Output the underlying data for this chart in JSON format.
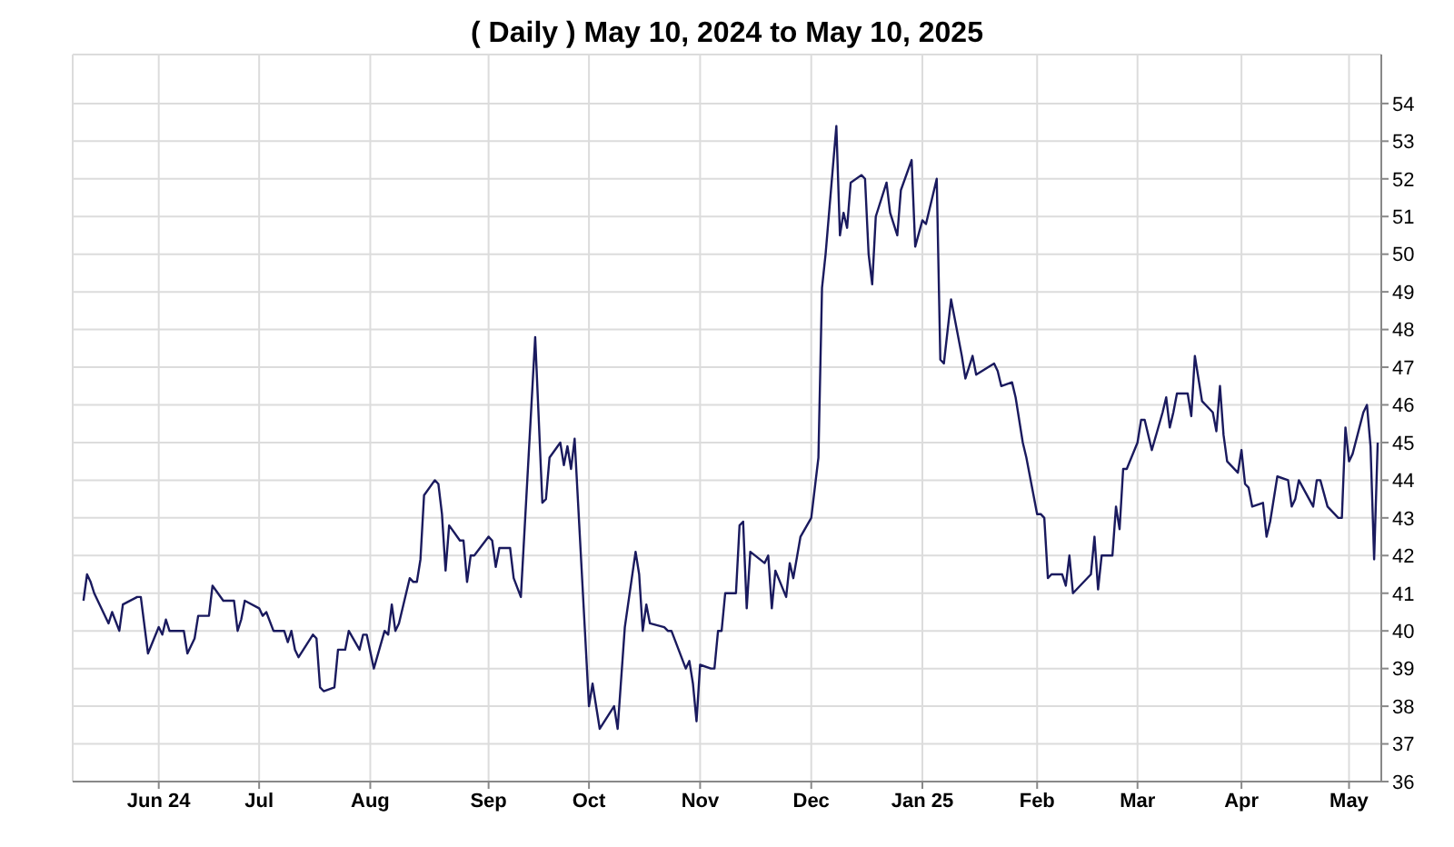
{
  "chart_data": {
    "type": "line",
    "title": "( Daily ) May 10, 2024 to May 10, 2025",
    "x": [
      "2024-05-13",
      "2024-05-14",
      "2024-05-15",
      "2024-05-16",
      "2024-05-20",
      "2024-05-21",
      "2024-05-23",
      "2024-05-24",
      "2024-05-28",
      "2024-05-29",
      "2024-05-31",
      "2024-06-03",
      "2024-06-04",
      "2024-06-05",
      "2024-06-06",
      "2024-06-10",
      "2024-06-11",
      "2024-06-13",
      "2024-06-14",
      "2024-06-17",
      "2024-06-18",
      "2024-06-21",
      "2024-06-24",
      "2024-06-25",
      "2024-06-26",
      "2024-06-27",
      "2024-07-01",
      "2024-07-02",
      "2024-07-03",
      "2024-07-05",
      "2024-07-08",
      "2024-07-09",
      "2024-07-10",
      "2024-07-11",
      "2024-07-12",
      "2024-07-16",
      "2024-07-17",
      "2024-07-18",
      "2024-07-19",
      "2024-07-22",
      "2024-07-23",
      "2024-07-25",
      "2024-07-26",
      "2024-07-29",
      "2024-07-30",
      "2024-07-31",
      "2024-08-02",
      "2024-08-05",
      "2024-08-06",
      "2024-08-07",
      "2024-08-08",
      "2024-08-09",
      "2024-08-12",
      "2024-08-13",
      "2024-08-14",
      "2024-08-15",
      "2024-08-16",
      "2024-08-19",
      "2024-08-20",
      "2024-08-21",
      "2024-08-22",
      "2024-08-23",
      "2024-08-26",
      "2024-08-27",
      "2024-08-28",
      "2024-08-29",
      "2024-08-30",
      "2024-09-03",
      "2024-09-04",
      "2024-09-05",
      "2024-09-06",
      "2024-09-09",
      "2024-09-10",
      "2024-09-12",
      "2024-09-16",
      "2024-09-18",
      "2024-09-19",
      "2024-09-20",
      "2024-09-23",
      "2024-09-24",
      "2024-09-25",
      "2024-09-26",
      "2024-09-27",
      "2024-10-01",
      "2024-10-02",
      "2024-10-04",
      "2024-10-08",
      "2024-10-09",
      "2024-10-11",
      "2024-10-14",
      "2024-10-15",
      "2024-10-16",
      "2024-10-17",
      "2024-10-18",
      "2024-10-22",
      "2024-10-23",
      "2024-10-24",
      "2024-10-28",
      "2024-10-29",
      "2024-10-30",
      "2024-10-31",
      "2024-11-01",
      "2024-11-04",
      "2024-11-05",
      "2024-11-06",
      "2024-11-07",
      "2024-11-08",
      "2024-11-11",
      "2024-11-12",
      "2024-11-13",
      "2024-11-14",
      "2024-11-15",
      "2024-11-19",
      "2024-11-20",
      "2024-11-21",
      "2024-11-22",
      "2024-11-25",
      "2024-11-26",
      "2024-11-27",
      "2024-11-29",
      "2024-12-02",
      "2024-12-04",
      "2024-12-05",
      "2024-12-06",
      "2024-12-09",
      "2024-12-10",
      "2024-12-11",
      "2024-12-12",
      "2024-12-13",
      "2024-12-16",
      "2024-12-17",
      "2024-12-18",
      "2024-12-19",
      "2024-12-20",
      "2024-12-23",
      "2024-12-24",
      "2024-12-26",
      "2024-12-27",
      "2024-12-30",
      "2024-12-31",
      "2025-01-02",
      "2025-01-03",
      "2025-01-06",
      "2025-01-07",
      "2025-01-08",
      "2025-01-10",
      "2025-01-13",
      "2025-01-14",
      "2025-01-15",
      "2025-01-16",
      "2025-01-17",
      "2025-01-22",
      "2025-01-23",
      "2025-01-24",
      "2025-01-27",
      "2025-01-28",
      "2025-01-30",
      "2025-01-31",
      "2025-02-03",
      "2025-02-04",
      "2025-02-05",
      "2025-02-06",
      "2025-02-07",
      "2025-02-10",
      "2025-02-11",
      "2025-02-12",
      "2025-02-13",
      "2025-02-18",
      "2025-02-19",
      "2025-02-20",
      "2025-02-21",
      "2025-02-24",
      "2025-02-25",
      "2025-02-26",
      "2025-02-27",
      "2025-02-28",
      "2025-03-03",
      "2025-03-04",
      "2025-03-05",
      "2025-03-07",
      "2025-03-10",
      "2025-03-11",
      "2025-03-12",
      "2025-03-13",
      "2025-03-14",
      "2025-03-17",
      "2025-03-18",
      "2025-03-19",
      "2025-03-21",
      "2025-03-24",
      "2025-03-25",
      "2025-03-26",
      "2025-03-27",
      "2025-03-28",
      "2025-03-31",
      "2025-04-01",
      "2025-04-02",
      "2025-04-03",
      "2025-04-04",
      "2025-04-07",
      "2025-04-08",
      "2025-04-09",
      "2025-04-11",
      "2025-04-14",
      "2025-04-15",
      "2025-04-16",
      "2025-04-17",
      "2025-04-21",
      "2025-04-22",
      "2025-04-23",
      "2025-04-25",
      "2025-04-28",
      "2025-04-29",
      "2025-04-30",
      "2025-05-01",
      "2025-05-02",
      "2025-05-05",
      "2025-05-06",
      "2025-05-07",
      "2025-05-08",
      "2025-05-09"
    ],
    "values": [
      40.8,
      41.5,
      41.3,
      41.0,
      40.2,
      40.5,
      40.0,
      40.7,
      40.9,
      40.9,
      39.4,
      40.1,
      39.9,
      40.3,
      40.0,
      40.0,
      39.4,
      39.8,
      40.4,
      40.4,
      41.2,
      40.8,
      40.8,
      40.0,
      40.3,
      40.8,
      40.6,
      40.4,
      40.5,
      40.0,
      40.0,
      39.7,
      40.0,
      39.5,
      39.3,
      39.9,
      39.8,
      38.5,
      38.4,
      38.5,
      39.5,
      39.5,
      40.0,
      39.5,
      39.9,
      39.9,
      39.0,
      40.0,
      39.9,
      40.7,
      40.0,
      40.2,
      41.4,
      41.3,
      41.3,
      41.9,
      43.6,
      44.0,
      43.9,
      43.1,
      41.6,
      42.8,
      42.4,
      42.4,
      41.3,
      42.0,
      42.0,
      42.5,
      42.4,
      41.7,
      42.2,
      42.2,
      41.4,
      40.9,
      47.8,
      43.4,
      43.5,
      44.6,
      45.0,
      44.4,
      44.9,
      44.3,
      45.1,
      38.0,
      38.6,
      37.4,
      38.0,
      37.4,
      40.1,
      42.1,
      41.5,
      40.0,
      40.7,
      40.2,
      40.1,
      40.0,
      40.0,
      39.0,
      39.2,
      38.6,
      37.6,
      39.1,
      39.0,
      39.0,
      40.0,
      40.0,
      41.0,
      41.0,
      42.8,
      42.9,
      40.6,
      42.1,
      41.8,
      42.0,
      40.6,
      41.6,
      40.9,
      41.8,
      41.4,
      42.5,
      43.0,
      44.6,
      49.1,
      50.0,
      53.4,
      50.5,
      51.1,
      50.7,
      51.9,
      52.1,
      52.0,
      50.0,
      49.2,
      51.0,
      51.9,
      51.1,
      50.5,
      51.7,
      52.5,
      50.2,
      50.9,
      50.8,
      52.0,
      47.2,
      47.1,
      48.8,
      47.3,
      46.7,
      47.0,
      47.3,
      46.8,
      47.1,
      46.9,
      46.5,
      46.6,
      46.2,
      45.0,
      44.6,
      43.1,
      43.1,
      43.0,
      41.4,
      41.5,
      41.5,
      41.2,
      42.0,
      41.0,
      41.5,
      42.5,
      41.1,
      42.0,
      42.0,
      43.3,
      42.7,
      44.3,
      44.3,
      45.0,
      45.6,
      45.6,
      44.8,
      45.8,
      46.2,
      45.4,
      45.8,
      46.3,
      46.3,
      45.7,
      47.3,
      46.1,
      45.8,
      45.3,
      46.5,
      45.2,
      44.5,
      44.2,
      44.8,
      43.9,
      43.8,
      43.3,
      43.4,
      42.5,
      42.9,
      44.1,
      44.0,
      43.3,
      43.5,
      44.0,
      43.3,
      44.0,
      44.0,
      43.3,
      43.0,
      43.0,
      45.4,
      44.5,
      44.7,
      45.8,
      46.0,
      44.9,
      41.9,
      45.0
    ],
    "color": "#1a1a5e",
    "xlim": [
      "2024-05-10",
      "2025-05-10"
    ],
    "xticks": [
      {
        "value": "2024-06-03",
        "label": "Jun 24"
      },
      {
        "value": "2024-07-01",
        "label": "Jul"
      },
      {
        "value": "2024-08-01",
        "label": "Aug"
      },
      {
        "value": "2024-09-03",
        "label": "Sep"
      },
      {
        "value": "2024-10-01",
        "label": "Oct"
      },
      {
        "value": "2024-11-01",
        "label": "Nov"
      },
      {
        "value": "2024-12-02",
        "label": "Dec"
      },
      {
        "value": "2025-01-02",
        "label": "Jan 25"
      },
      {
        "value": "2025-02-03",
        "label": "Feb"
      },
      {
        "value": "2025-03-03",
        "label": "Mar"
      },
      {
        "value": "2025-04-01",
        "label": "Apr"
      },
      {
        "value": "2025-05-01",
        "label": "May"
      }
    ],
    "ylim": [
      36,
      55.3
    ],
    "yticks": [
      36,
      37,
      38,
      39,
      40,
      41,
      42,
      43,
      44,
      45,
      46,
      47,
      48,
      49,
      50,
      51,
      52,
      53,
      54
    ],
    "grid": true
  }
}
